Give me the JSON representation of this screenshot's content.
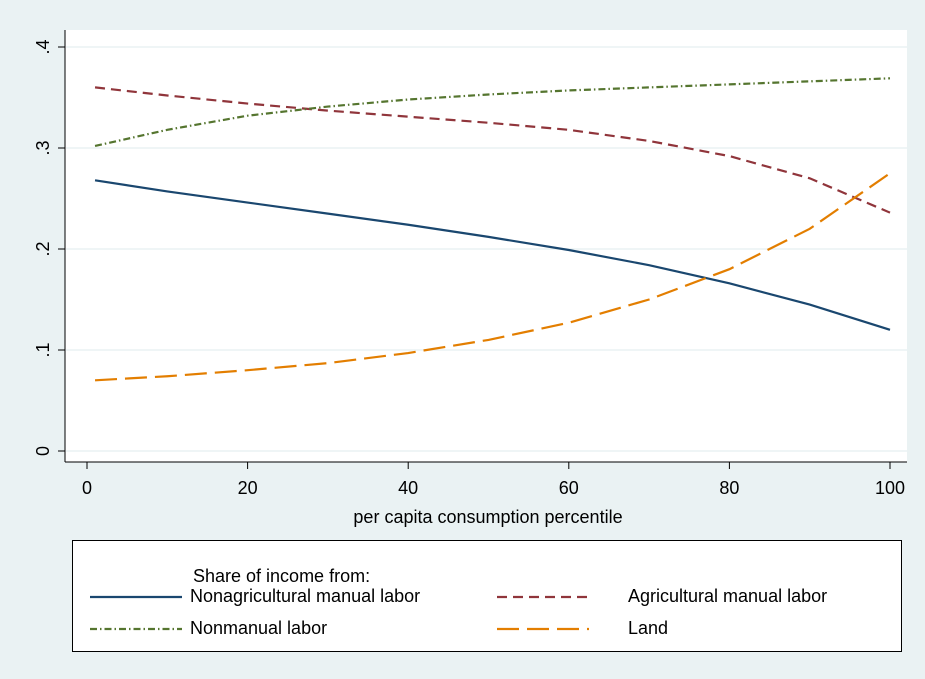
{
  "chart_data": {
    "type": "line",
    "x_label": "per capita consumption percentile",
    "legend_title": "Share of income from:",
    "x": [
      1,
      10,
      20,
      30,
      40,
      50,
      60,
      70,
      80,
      90,
      100
    ],
    "series": [
      {
        "name": "Nonagricultural manual labor",
        "color": "#1a476f",
        "dash": "solid",
        "values": [
          0.268,
          0.257,
          0.246,
          0.235,
          0.224,
          0.212,
          0.199,
          0.184,
          0.166,
          0.145,
          0.12
        ]
      },
      {
        "name": "Agricultural manual labor",
        "color": "#90353b",
        "dash": "dash",
        "values": [
          0.36,
          0.352,
          0.344,
          0.337,
          0.331,
          0.325,
          0.318,
          0.307,
          0.292,
          0.27,
          0.236
        ]
      },
      {
        "name": "Nonmanual labor",
        "color": "#55752f",
        "dash": "dashdot",
        "values": [
          0.302,
          0.318,
          0.332,
          0.341,
          0.348,
          0.353,
          0.357,
          0.36,
          0.363,
          0.366,
          0.369
        ]
      },
      {
        "name": "Land",
        "color": "#e37e00",
        "dash": "longdash",
        "values": [
          0.07,
          0.074,
          0.08,
          0.087,
          0.097,
          0.11,
          0.127,
          0.15,
          0.18,
          0.22,
          0.275
        ]
      }
    ],
    "xlim": [
      0,
      100
    ],
    "xticks": [
      0,
      20,
      40,
      60,
      80,
      100
    ],
    "ylim": [
      0,
      0.4
    ],
    "yticks": [
      0,
      {
        "value": 0.1,
        "label": ".1"
      },
      {
        "value": 0.2,
        "label": ".2"
      },
      {
        "value": 0.3,
        "label": ".3"
      },
      {
        "value": 0.4,
        "label": ".4"
      }
    ],
    "grid": true
  }
}
